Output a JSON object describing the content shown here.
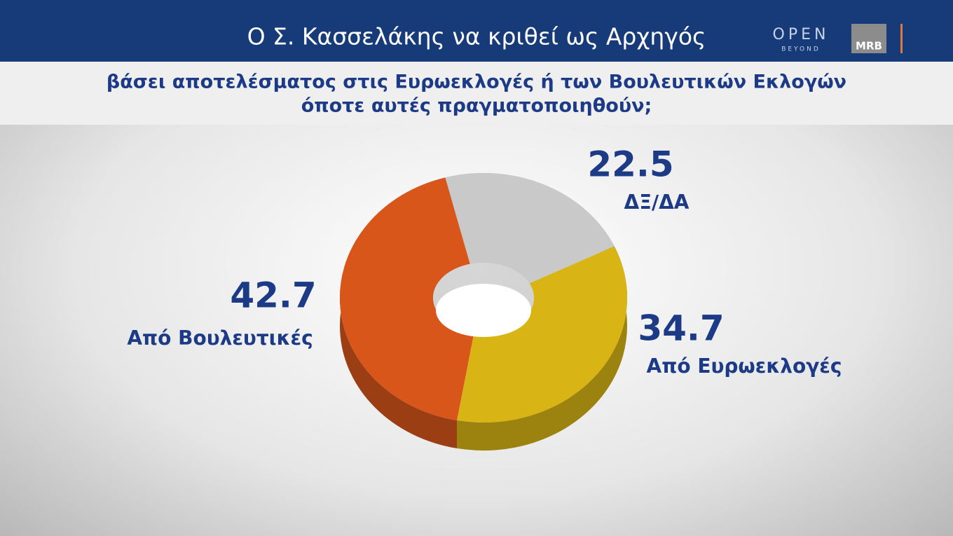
{
  "chart_data": {
    "type": "pie",
    "title": "Ο Σ. Κασσελάκης να κριθεί ως Αρχηγός",
    "subtitle": [
      "βάσει αποτελέσματος στις Ευρωεκλογές ή των Βουλευτικών Εκλογών",
      "όποτε αυτές πραγματοποιηθούν;"
    ],
    "categories": [
      "ΔΞ/ΔΑ",
      "Από Ευρωεκλογές",
      "Από Βουλευτικές"
    ],
    "values": [
      22.5,
      34.7,
      42.7
    ],
    "colors": [
      "#c9c9c9",
      "#d8b414",
      "#d9561b"
    ]
  },
  "logos": {
    "open": "OPEN",
    "beyond": "BEYOND",
    "mrb": "MRB"
  }
}
